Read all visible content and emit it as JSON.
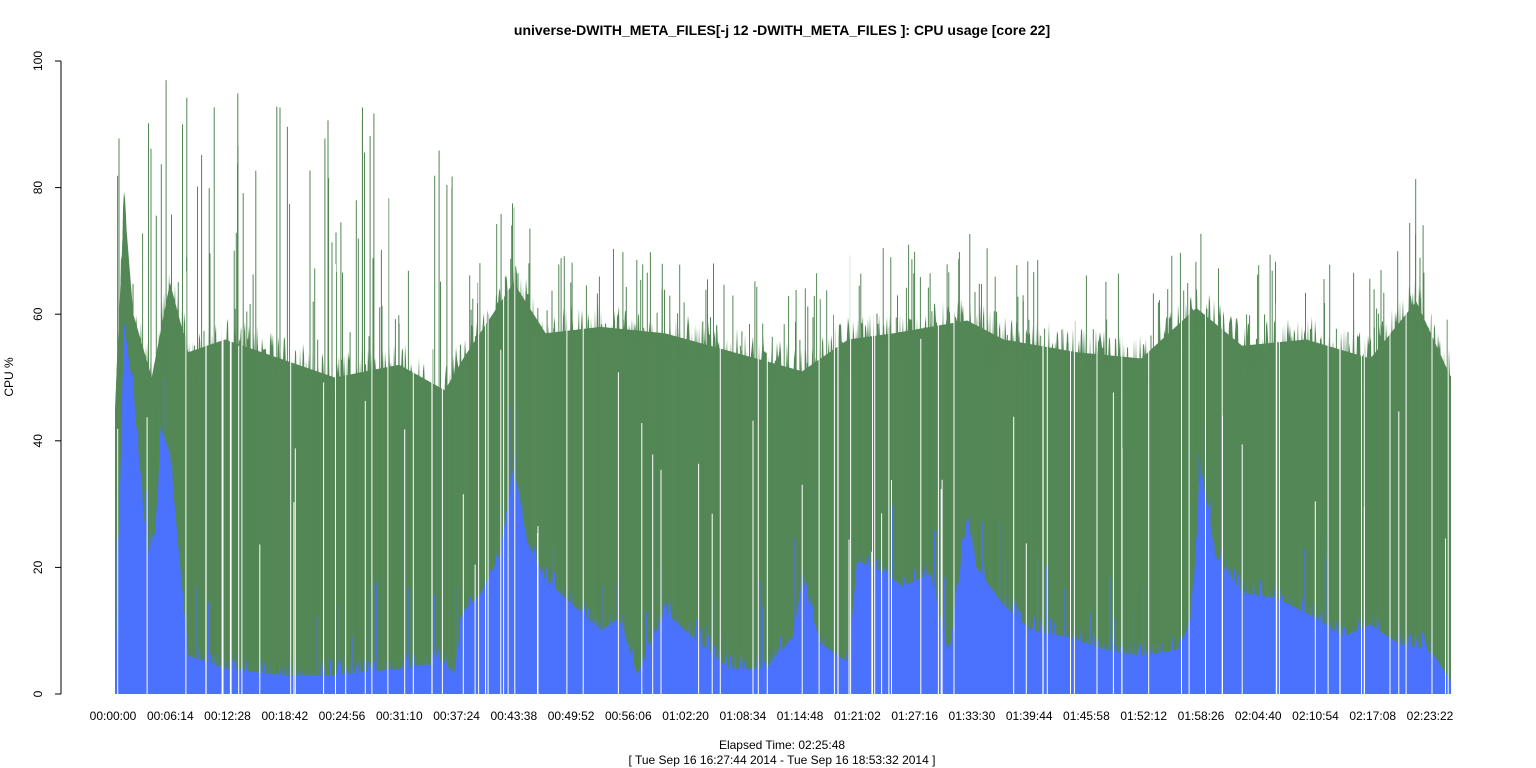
{
  "chart_data": {
    "type": "area",
    "title": "universe-DWITH_META_FILES[-j 12 -DWITH_META_FILES ]: CPU usage [core 22]",
    "ylabel": "CPU %",
    "xlabel": "Elapsed Time: 02:25:48",
    "xlabel_sub": "[ Tue Sep 16 16:27:44 2014 - Tue Sep 16 18:53:32 2014 ]",
    "ylim": [
      0,
      100
    ],
    "yticks": [
      0,
      20,
      40,
      60,
      80,
      100
    ],
    "x_range_seconds": [
      0,
      8748
    ],
    "xticks": [
      "00:00:00",
      "00:06:14",
      "00:12:28",
      "00:18:42",
      "00:24:56",
      "00:31:10",
      "00:37:24",
      "00:43:38",
      "00:49:52",
      "00:56:06",
      "01:02:20",
      "01:08:34",
      "01:14:48",
      "01:21:02",
      "01:27:16",
      "01:33:30",
      "01:39:44",
      "01:45:58",
      "01:52:12",
      "01:58:26",
      "02:04:40",
      "02:10:54",
      "02:17:08",
      "02:23:22"
    ],
    "grid": false,
    "colors": {
      "system": "#4a72fe",
      "user": "#538755"
    },
    "series": [
      {
        "name": "",
        "color": "#4a72fe",
        "x": [
          "00:00:00",
          "00:01:00",
          "00:02:00",
          "00:03:30",
          "00:04:30",
          "00:05:00",
          "00:06:00",
          "00:08:00",
          "00:12:00",
          "00:18:00",
          "00:24:00",
          "00:31:00",
          "00:36:00",
          "00:37:00",
          "00:38:00",
          "00:40:00",
          "00:42:00",
          "00:43:30",
          "00:45:00",
          "00:47:00",
          "00:50:00",
          "00:53:00",
          "00:55:00",
          "00:57:00",
          "01:00:00",
          "01:03:00",
          "01:07:00",
          "01:11:00",
          "01:14:00",
          "01:15:00",
          "01:17:00",
          "01:20:00",
          "01:21:00",
          "01:23:00",
          "01:26:00",
          "01:29:00",
          "01:31:00",
          "01:33:00",
          "01:34:00",
          "01:37:00",
          "01:40:00",
          "01:44:00",
          "01:48:00",
          "01:52:00",
          "01:56:00",
          "01:57:30",
          "01:58:30",
          "02:00:00",
          "02:03:00",
          "02:07:00",
          "02:11:00",
          "02:14:00",
          "02:17:00",
          "02:20:00",
          "02:23:00",
          "02:24:00",
          "02:25:48"
        ],
        "values": [
          1,
          58,
          48,
          22,
          26,
          42,
          38,
          6,
          4,
          3,
          3,
          4,
          5,
          3,
          13,
          16,
          22,
          36,
          24,
          18,
          14,
          10,
          12,
          3,
          13,
          9,
          4,
          4,
          9,
          18,
          8,
          5,
          21,
          20,
          17,
          19,
          6,
          28,
          20,
          14,
          10,
          9,
          7,
          6,
          7,
          12,
          36,
          22,
          16,
          15,
          12,
          9,
          11,
          8,
          7,
          6,
          2
        ]
      },
      {
        "name": "",
        "color": "#538755",
        "x": [
          "00:00:00",
          "00:01:00",
          "00:02:00",
          "00:04:00",
          "00:06:00",
          "00:08:00",
          "00:12:00",
          "00:18:00",
          "00:24:00",
          "00:31:00",
          "00:36:00",
          "00:38:00",
          "00:43:30",
          "00:47:00",
          "00:53:00",
          "01:00:00",
          "01:10:00",
          "01:15:00",
          "01:20:00",
          "01:25:00",
          "01:33:00",
          "01:37:00",
          "01:45:00",
          "01:52:00",
          "01:58:00",
          "02:03:00",
          "02:10:00",
          "02:17:00",
          "02:22:00",
          "02:25:48"
        ],
        "values": [
          45,
          78,
          60,
          50,
          65,
          54,
          56,
          53,
          50,
          52,
          48,
          53,
          65,
          57,
          58,
          57,
          53,
          51,
          56,
          57,
          59,
          56,
          54,
          53,
          61,
          55,
          56,
          53,
          62,
          50
        ]
      }
    ]
  }
}
